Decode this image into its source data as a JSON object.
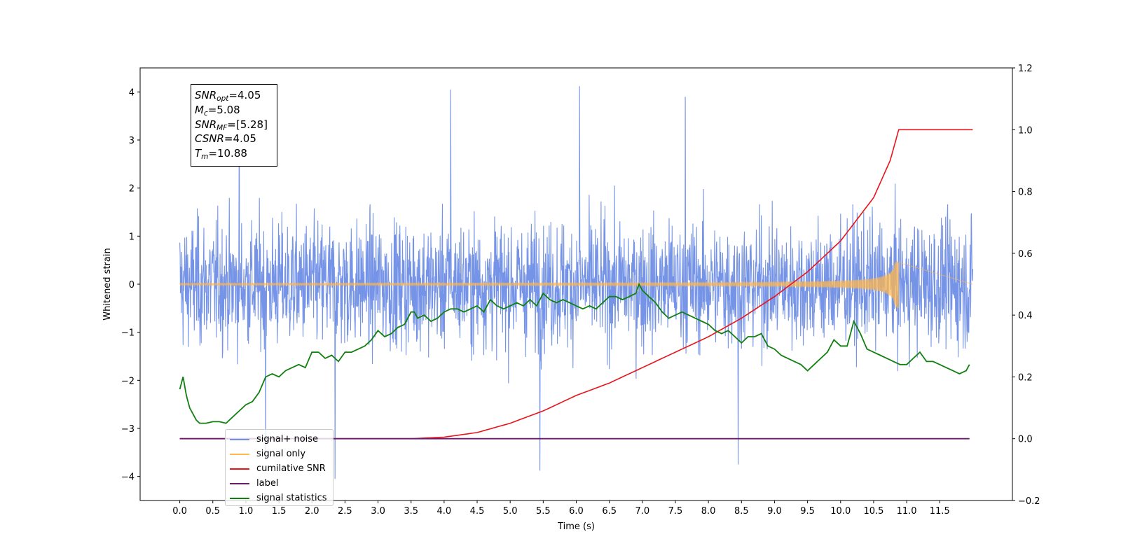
{
  "chart_data": {
    "type": "line",
    "xlabel": "Time (s)",
    "ylabel": "Whitened strain",
    "xlim": [
      -0.6,
      12.6
    ],
    "ylim": [
      -4.5,
      4.5
    ],
    "y2lim": [
      -0.2,
      1.2
    ],
    "x_ticks": [
      "0.0",
      "0.5",
      "1.0",
      "1.5",
      "2.0",
      "2.5",
      "3.0",
      "3.5",
      "4.0",
      "4.5",
      "5.0",
      "5.5",
      "6.0",
      "6.5",
      "7.0",
      "7.5",
      "8.0",
      "8.5",
      "9.0",
      "9.5",
      "10.0",
      "10.5",
      "11.0",
      "11.5"
    ],
    "y_ticks": [
      "4",
      "3",
      "2",
      "1",
      "0",
      "−1",
      "−2",
      "−3",
      "−4"
    ],
    "y2_ticks": [
      "1.2",
      "1.0",
      "0.8",
      "0.6",
      "0.4",
      "0.2",
      "0.0",
      "−0.2"
    ],
    "grid": false,
    "legend_position": "bottom-left",
    "series": [
      {
        "name": "signal+ noise",
        "axis": "left",
        "color": "#6f8ee6",
        "x_range": [
          0.0,
          12.0
        ],
        "noise_sigma": 1.0,
        "peaks": [
          4.1,
          4.05,
          4.12,
          3.9,
          -4.05,
          -3.88,
          -3.75,
          -3.65
        ]
      },
      {
        "name": "signal only",
        "axis": "left",
        "color": "#ffb74d",
        "x_range": [
          0.0,
          10.88
        ],
        "amplitude_start": 0.01,
        "amplitude_peak": 0.5,
        "merger_time": 10.88
      },
      {
        "name": "cumilative SNR",
        "axis": "right",
        "color": "#e8141b",
        "x": [
          0.0,
          3.5,
          4.0,
          4.5,
          5.0,
          5.5,
          6.0,
          6.5,
          7.0,
          7.5,
          8.0,
          8.5,
          9.0,
          9.5,
          10.0,
          10.5,
          10.75,
          10.88,
          11.0,
          11.5,
          12.0
        ],
        "values": [
          0.0,
          0.0,
          0.005,
          0.02,
          0.05,
          0.09,
          0.14,
          0.18,
          0.23,
          0.28,
          0.33,
          0.39,
          0.46,
          0.54,
          0.64,
          0.78,
          0.9,
          1.0,
          1.0,
          1.0,
          1.0
        ]
      },
      {
        "name": "label",
        "axis": "right",
        "color": "#6a1b6a",
        "x": [
          0.0,
          11.95
        ],
        "values": [
          0.0,
          0.0
        ]
      },
      {
        "name": "signal statistics",
        "axis": "right",
        "color": "#118011",
        "x": [
          0.0,
          0.05,
          0.1,
          0.15,
          0.2,
          0.25,
          0.3,
          0.4,
          0.5,
          0.6,
          0.7,
          0.8,
          0.9,
          1.0,
          1.1,
          1.2,
          1.3,
          1.4,
          1.5,
          1.6,
          1.7,
          1.8,
          1.9,
          2.0,
          2.1,
          2.2,
          2.3,
          2.4,
          2.5,
          2.6,
          2.7,
          2.8,
          2.9,
          3.0,
          3.1,
          3.2,
          3.3,
          3.4,
          3.5,
          3.55,
          3.6,
          3.7,
          3.8,
          3.9,
          4.0,
          4.1,
          4.2,
          4.3,
          4.4,
          4.5,
          4.6,
          4.7,
          4.8,
          4.9,
          5.0,
          5.1,
          5.2,
          5.3,
          5.4,
          5.5,
          5.6,
          5.7,
          5.8,
          5.9,
          6.0,
          6.1,
          6.2,
          6.3,
          6.4,
          6.5,
          6.6,
          6.7,
          6.8,
          6.9,
          6.95,
          7.0,
          7.1,
          7.2,
          7.3,
          7.4,
          7.5,
          7.6,
          7.7,
          7.8,
          7.9,
          8.0,
          8.1,
          8.2,
          8.3,
          8.4,
          8.5,
          8.6,
          8.7,
          8.8,
          8.9,
          9.0,
          9.1,
          9.2,
          9.3,
          9.4,
          9.5,
          9.6,
          9.7,
          9.8,
          9.9,
          10.0,
          10.1,
          10.2,
          10.3,
          10.4,
          10.5,
          10.6,
          10.7,
          10.8,
          10.9,
          11.0,
          11.1,
          11.2,
          11.3,
          11.4,
          11.5,
          11.6,
          11.7,
          11.8,
          11.9,
          11.95
        ],
        "values": [
          0.16,
          0.2,
          0.14,
          0.1,
          0.08,
          0.06,
          0.05,
          0.05,
          0.055,
          0.055,
          0.05,
          0.07,
          0.09,
          0.11,
          0.12,
          0.15,
          0.2,
          0.21,
          0.2,
          0.22,
          0.23,
          0.24,
          0.23,
          0.28,
          0.28,
          0.26,
          0.27,
          0.25,
          0.28,
          0.28,
          0.29,
          0.3,
          0.32,
          0.35,
          0.33,
          0.34,
          0.36,
          0.37,
          0.41,
          0.41,
          0.39,
          0.4,
          0.38,
          0.39,
          0.41,
          0.42,
          0.42,
          0.41,
          0.42,
          0.43,
          0.41,
          0.45,
          0.43,
          0.42,
          0.43,
          0.44,
          0.43,
          0.45,
          0.43,
          0.47,
          0.45,
          0.44,
          0.45,
          0.44,
          0.43,
          0.42,
          0.43,
          0.42,
          0.44,
          0.46,
          0.46,
          0.45,
          0.46,
          0.47,
          0.5,
          0.48,
          0.46,
          0.44,
          0.41,
          0.39,
          0.4,
          0.41,
          0.4,
          0.39,
          0.38,
          0.37,
          0.35,
          0.34,
          0.35,
          0.33,
          0.31,
          0.33,
          0.33,
          0.34,
          0.3,
          0.29,
          0.27,
          0.26,
          0.25,
          0.24,
          0.22,
          0.24,
          0.26,
          0.28,
          0.32,
          0.3,
          0.3,
          0.38,
          0.34,
          0.29,
          0.28,
          0.27,
          0.26,
          0.25,
          0.24,
          0.24,
          0.26,
          0.28,
          0.25,
          0.25,
          0.24,
          0.23,
          0.22,
          0.21,
          0.22,
          0.24
        ]
      }
    ],
    "annotation": {
      "lines": [
        {
          "var": "SNR",
          "sub": "opt",
          "value": "=4.05"
        },
        {
          "var": "M",
          "sub": "c",
          "value": "=5.08"
        },
        {
          "var": "SNR",
          "sub": "MF",
          "value": "=[5.28]"
        },
        {
          "var": "CSNR",
          "sub": "",
          "value": "=4.05"
        },
        {
          "var": "T",
          "sub": "m",
          "value": "=10.88"
        }
      ]
    }
  },
  "legend_items": [
    {
      "label": "signal+ noise",
      "color": "#6f8ee6"
    },
    {
      "label": "signal only",
      "color": "#ffb74d"
    },
    {
      "label": "cumilative SNR",
      "color": "#e8141b"
    },
    {
      "label": "label",
      "color": "#6a1b6a"
    },
    {
      "label": "signal statistics",
      "color": "#118011"
    }
  ]
}
